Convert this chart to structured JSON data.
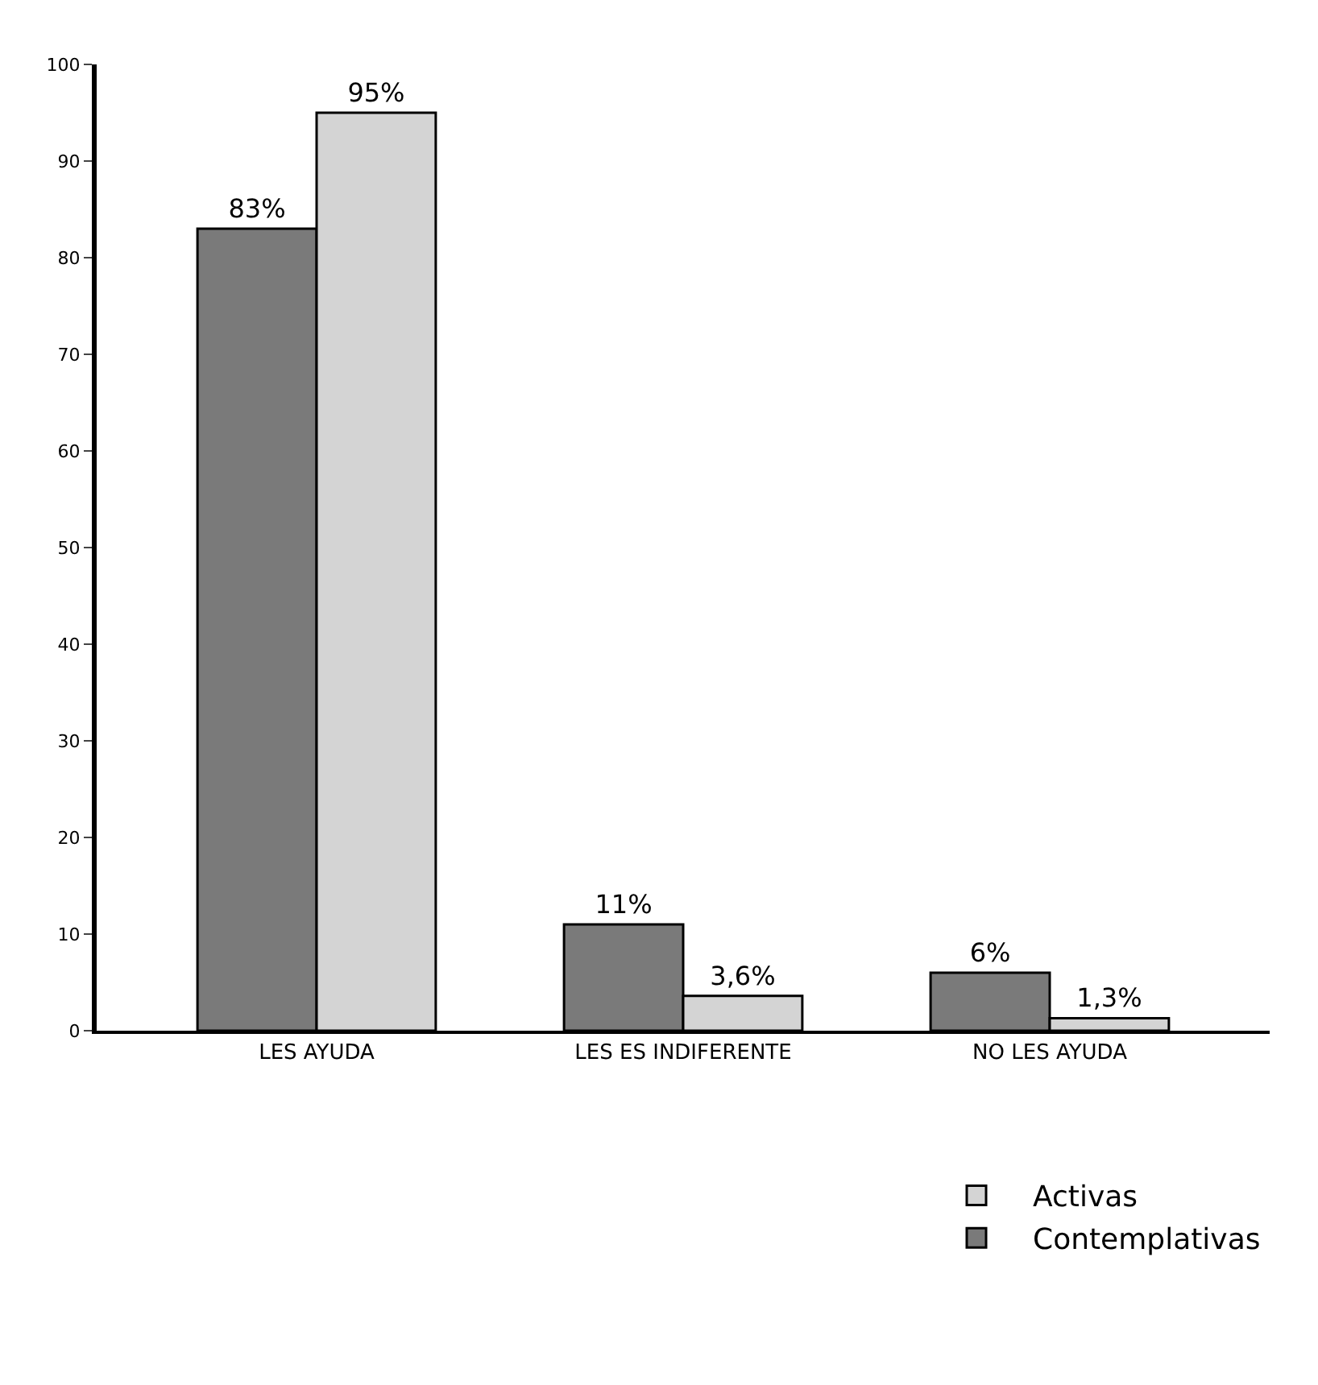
{
  "chart_data": {
    "type": "bar",
    "categories": [
      "LES AYUDA",
      "LES ES INDIFERENTE",
      "NO LES AYUDA"
    ],
    "series": [
      {
        "name": "Contemplativas",
        "color": "#7a7a7a",
        "values": [
          83,
          11,
          6
        ],
        "value_labels": [
          "83%",
          "11%",
          "6%"
        ]
      },
      {
        "name": "Activas",
        "color": "#d4d4d4",
        "values": [
          95,
          3.6,
          1.3
        ],
        "value_labels": [
          "95%",
          "3,6%",
          "1,3%"
        ]
      }
    ],
    "ylim": [
      0,
      100
    ],
    "yticks": [
      0,
      10,
      20,
      30,
      40,
      50,
      60,
      70,
      80,
      90,
      100
    ],
    "legend": "bottom right"
  }
}
